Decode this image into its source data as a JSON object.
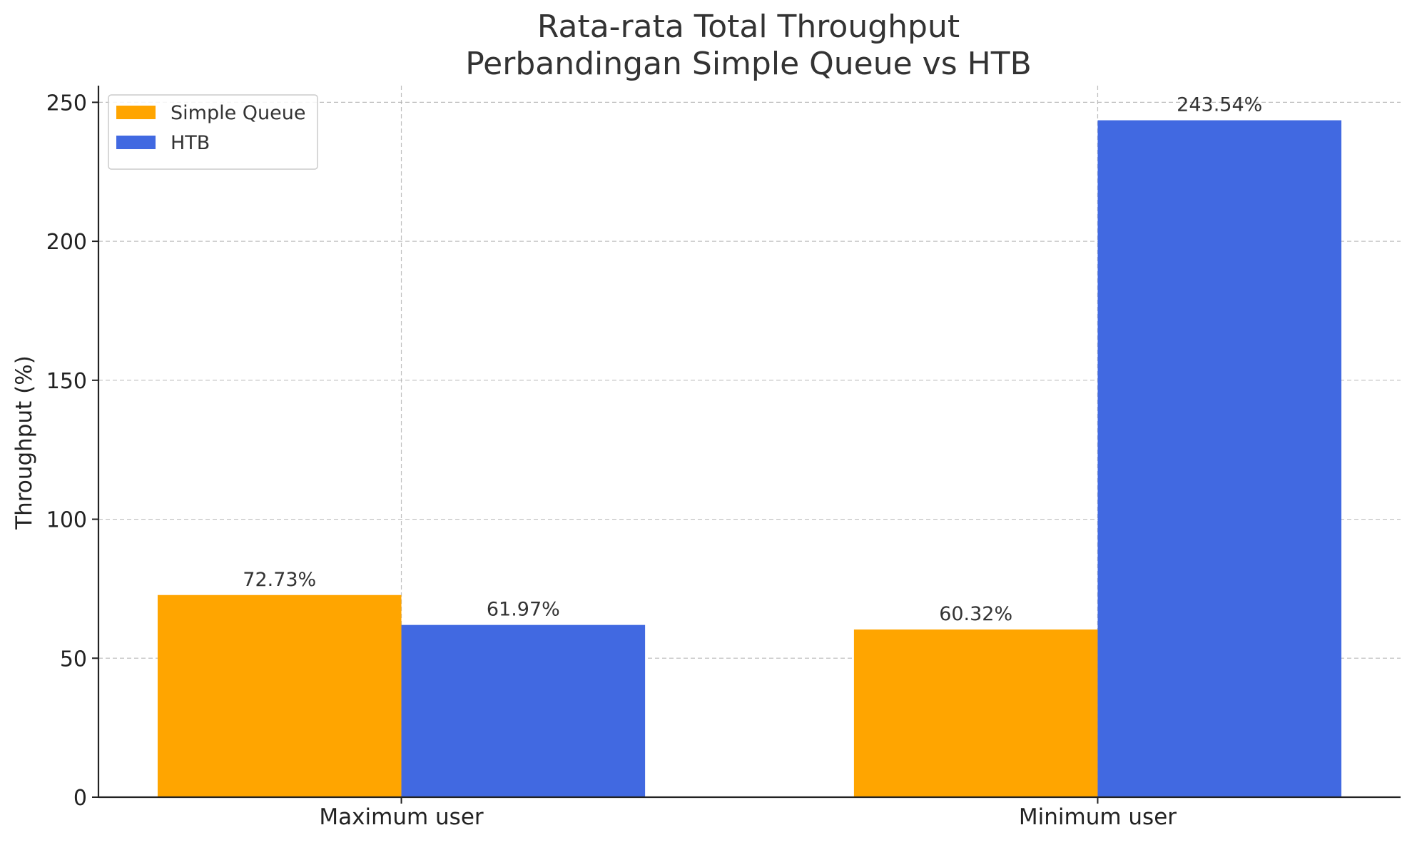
{
  "chart_data": {
    "type": "bar",
    "title": "Rata-rata Total Throughput\nPerbandingan Simple Queue vs HTB",
    "title_lines": [
      "Rata-rata Total Throughput",
      "Perbandingan Simple Queue vs HTB"
    ],
    "xlabel": "",
    "ylabel": "Throughput (%)",
    "categories": [
      "Maximum user",
      "Minimum user"
    ],
    "series": [
      {
        "name": "Simple Queue",
        "color": "#FFA500",
        "values": [
          72.73,
          60.32
        ],
        "labels": [
          "72.73%",
          "60.32%"
        ]
      },
      {
        "name": "HTB",
        "color": "#4169E1",
        "values": [
          61.97,
          243.54
        ],
        "labels": [
          "61.97%",
          "243.54%"
        ]
      }
    ],
    "ylim": [
      0,
      256
    ],
    "yticks": [
      0,
      50,
      100,
      150,
      200,
      250
    ],
    "grid": true,
    "legend_position": "top-left"
  }
}
